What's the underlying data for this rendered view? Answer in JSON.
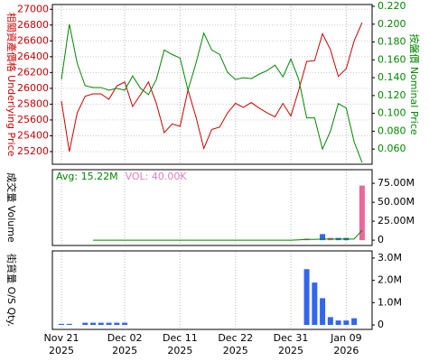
{
  "chart_data": [
    {
      "type": "line",
      "ylabel": "相關資產價格 Underlying Price",
      "y2label": "按盤價 Nominal Price",
      "grid": true,
      "ylim": [
        25040,
        27060
      ],
      "yticks": [
        25200,
        25400,
        25600,
        25800,
        26000,
        26200,
        26400,
        26600,
        26800,
        27000
      ],
      "y2lim": [
        0.043,
        0.222
      ],
      "y2ticks": [
        {
          "value": 0.06,
          "label": "0.060"
        },
        {
          "value": 0.08,
          "label": "0.080"
        },
        {
          "value": 0.1,
          "label": "0.100"
        },
        {
          "value": 0.12,
          "label": "0.120"
        },
        {
          "value": 0.14,
          "label": "0.140"
        },
        {
          "value": 0.16,
          "label": "0.160"
        },
        {
          "value": 0.18,
          "label": "0.180"
        },
        {
          "value": 0.2,
          "label": "0.200"
        },
        {
          "value": 0.22,
          "label": "0.220"
        }
      ],
      "series": [
        {
          "color": "#cc0000",
          "values": [
            25840,
            25200,
            25690,
            25900,
            25930,
            25930,
            25860,
            26030,
            26080,
            25770,
            25920,
            26080,
            25810,
            25440,
            25550,
            25520,
            25980,
            25640,
            25240,
            25480,
            25510,
            25690,
            25810,
            25760,
            25820,
            25750,
            25690,
            25640,
            25810,
            25650,
            25980,
            26340,
            26350,
            26690,
            26490,
            26150,
            26250,
            26600,
            26830
          ]
        },
        {
          "color": "#008800",
          "axis": "y2",
          "values": [
            0.138,
            0.2,
            0.156,
            0.131,
            0.129,
            0.129,
            0.126,
            0.128,
            0.126,
            0.142,
            0.128,
            0.121,
            0.138,
            0.171,
            0.166,
            0.162,
            0.126,
            0.156,
            0.19,
            0.171,
            0.166,
            0.146,
            0.138,
            0.14,
            0.139,
            0.144,
            0.148,
            0.154,
            0.141,
            0.161,
            0.138,
            0.095,
            0.095,
            0.06,
            0.08,
            0.111,
            0.106,
            0.068,
            0.045
          ]
        }
      ]
    },
    {
      "type": "bar",
      "ylabel": "成交量 Volume",
      "annotations": [
        "Avg: 15.22M",
        "VOL: 40.00K"
      ],
      "annotation_colors": [
        "#008800",
        "#e080c0"
      ],
      "ylim": [
        -7000000,
        93000000
      ],
      "yticks": [
        0,
        {
          "value": 25000000,
          "label": "25.00M"
        },
        {
          "value": 50000000,
          "label": "50.00M"
        },
        {
          "value": 75000000,
          "label": "75.00M"
        }
      ],
      "values": [
        0,
        0,
        0,
        0,
        0,
        0,
        0,
        0,
        0,
        0,
        0,
        0,
        0,
        0,
        0,
        0,
        0,
        0,
        0,
        0,
        0,
        0,
        0,
        0,
        0,
        0,
        0,
        0,
        0,
        0,
        500000,
        2000000,
        0,
        8000000,
        3000000,
        3000000,
        3000000,
        0,
        72000000
      ],
      "bar_colors": [
        "#3366ee",
        "#3366ee",
        "#3366ee",
        "#3366ee",
        "#3366ee",
        "#3366ee",
        "#3366ee",
        "#3366ee",
        "#3366ee",
        "#3366ee",
        "#3366ee",
        "#3366ee",
        "#3366ee",
        "#3366ee",
        "#3366ee",
        "#3366ee",
        "#3366ee",
        "#3366ee",
        "#3366ee",
        "#3366ee",
        "#3366ee",
        "#3366ee",
        "#3366ee",
        "#3366ee",
        "#3366ee",
        "#3366ee",
        "#3366ee",
        "#3366ee",
        "#3366ee",
        "#3366ee",
        "#ee6699",
        "#ee6699",
        "#3366ee",
        "#3366ee",
        "#ee6699",
        "#3366ee",
        "#3366ee",
        "#3366ee",
        "#ee6699"
      ],
      "line": {
        "color": "#008800",
        "values": [
          null,
          null,
          null,
          null,
          0,
          0,
          0,
          0,
          0,
          0,
          0,
          0,
          0,
          0,
          0,
          0,
          0,
          0,
          0,
          0,
          0,
          0,
          0,
          0,
          0,
          0,
          0,
          0,
          0,
          0,
          500000,
          1000000,
          1000000,
          1500000,
          1500000,
          1500000,
          1500000,
          1500000,
          13000000
        ]
      }
    },
    {
      "type": "bar",
      "ylabel": "街貨量 O/S Qty.",
      "color": "#3366ee",
      "ylim": [
        -200000,
        3320000
      ],
      "yticks": [
        0,
        {
          "value": 1000000,
          "label": "1.0M"
        },
        {
          "value": 2000000,
          "label": "2.0M"
        },
        {
          "value": 3000000,
          "label": "3.0M"
        }
      ],
      "categories": [
        "Nov 21\n2025",
        null,
        null,
        null,
        null,
        null,
        null,
        null,
        "Dec 02\n2025",
        null,
        null,
        null,
        null,
        null,
        null,
        "Dec 11\n2025",
        null,
        null,
        null,
        null,
        null,
        null,
        "Dec 22\n2025",
        null,
        null,
        null,
        null,
        null,
        null,
        "Dec 31\n2025",
        null,
        null,
        null,
        null,
        null,
        null,
        "Jan 09\n2026",
        null,
        null
      ],
      "values": [
        50000,
        50000,
        0,
        100000,
        100000,
        100000,
        100000,
        100000,
        100000,
        0,
        0,
        0,
        0,
        0,
        0,
        0,
        0,
        0,
        0,
        0,
        0,
        0,
        0,
        0,
        0,
        0,
        0,
        0,
        0,
        0,
        0,
        2500000,
        1900000,
        1200000,
        350000,
        200000,
        200000,
        300000,
        0
      ]
    }
  ]
}
